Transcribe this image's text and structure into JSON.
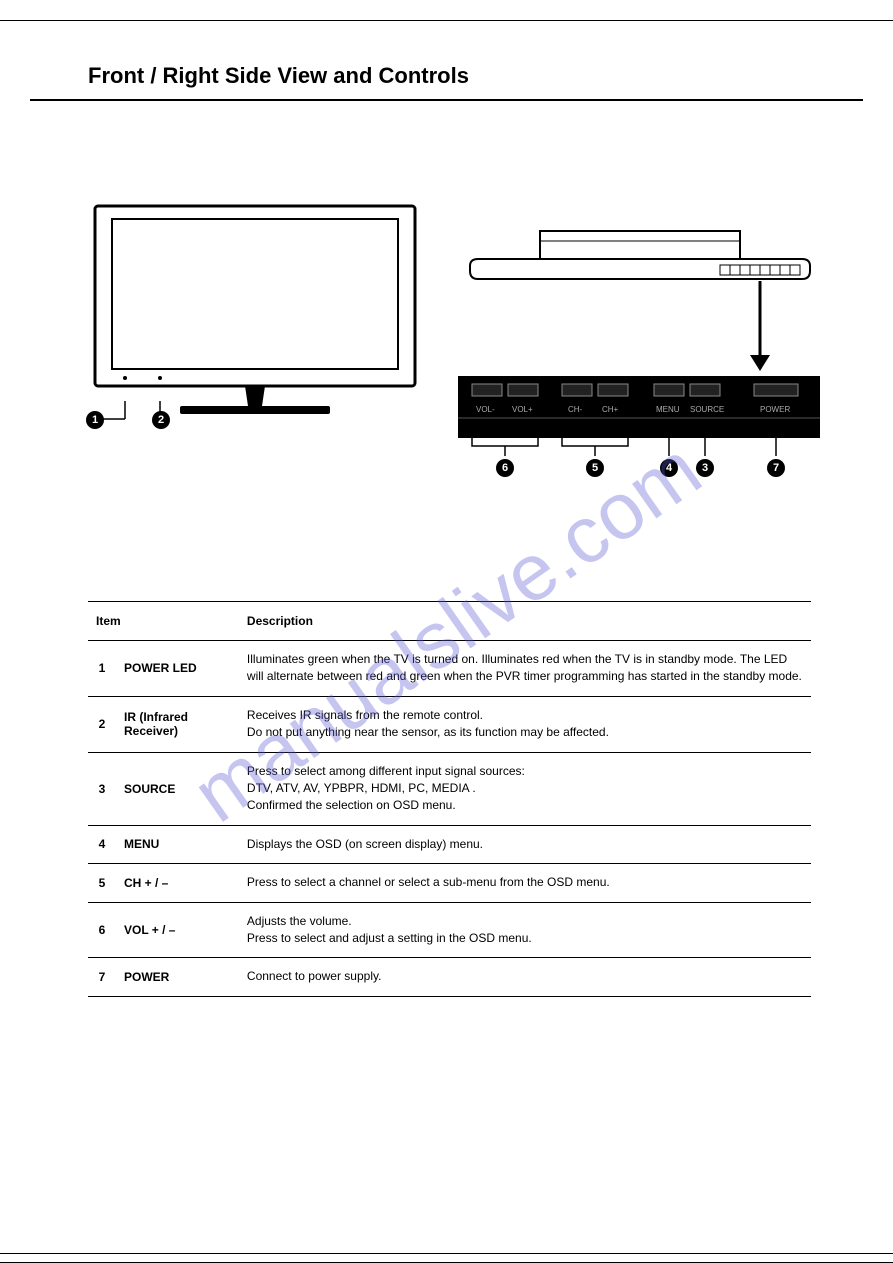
{
  "title": "Front / Right Side View and Controls",
  "watermark": "manualslive.com",
  "button_panel": {
    "labels": [
      "VOL-",
      "VOL+",
      "CH-",
      "CH+",
      "MENU",
      "SOURCE",
      "POWER"
    ]
  },
  "callouts": {
    "front": [
      "1",
      "2"
    ],
    "panel": [
      "6",
      "5",
      "4",
      "3",
      "7"
    ]
  },
  "table": {
    "headers": {
      "item": "Item",
      "description": "Description"
    },
    "rows": [
      {
        "num": "1",
        "name": "POWER LED",
        "desc": "Illuminates green when the TV is turned on. Illuminates red when the TV is in standby mode. The LED will alternate between red and green when the PVR timer programming has started in the standby mode."
      },
      {
        "num": "2",
        "name": "IR (Infrared Receiver)",
        "desc": "Receives IR signals from the remote control.\nDo not put anything near the sensor, as its function may be affected."
      },
      {
        "num": "3",
        "name": "SOURCE",
        "desc": "Press to select among different input signal sources:\nDTV, ATV, AV, YPBPR, HDMI,  PC, MEDIA .\nConfirmed the selection on OSD menu."
      },
      {
        "num": "4",
        "name": "MENU",
        "desc": "Displays the OSD (on screen display) menu."
      },
      {
        "num": "5",
        "name": "CH + / –",
        "desc": "Press to select a channel or select a sub-menu from the OSD menu."
      },
      {
        "num": "6",
        "name": "VOL + / –",
        "desc": "Adjusts the volume.\nPress to select and adjust a setting in the OSD menu."
      },
      {
        "num": "7",
        "name": "POWER",
        "desc": "Connect to power supply."
      }
    ]
  },
  "colors": {
    "text": "#000000",
    "background": "#ffffff",
    "watermark": "#5b5bd6",
    "panel_bg": "#000000",
    "panel_text": "#aaaaaa"
  }
}
